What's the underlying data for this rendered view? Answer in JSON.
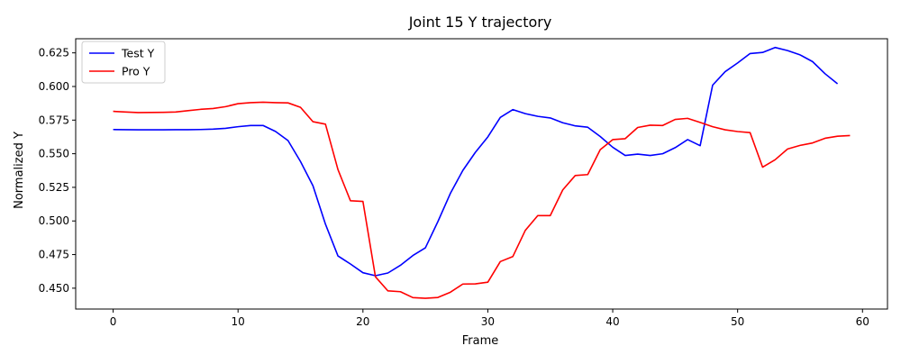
{
  "chart_data": {
    "type": "line",
    "title": "Joint 15 Y trajectory",
    "xlabel": "Frame",
    "ylabel": "Normalized Y",
    "xlim": [
      -3,
      62
    ],
    "ylim": [
      0.4345,
      0.6355
    ],
    "x_ticks": [
      0,
      10,
      20,
      30,
      40,
      50,
      60
    ],
    "y_ticks": [
      0.45,
      0.475,
      0.5,
      0.525,
      0.55,
      0.575,
      0.6,
      0.625
    ],
    "grid": false,
    "legend_position": "upper-left",
    "series": [
      {
        "name": "Test Y",
        "color": "#0000ff",
        "x": [
          0,
          1,
          2,
          3,
          4,
          5,
          6,
          7,
          8,
          9,
          10,
          11,
          12,
          13,
          14,
          15,
          16,
          17,
          18,
          19,
          20,
          21,
          22,
          23,
          24,
          25,
          26,
          27,
          28,
          29,
          30,
          31,
          32,
          33,
          34,
          35,
          36,
          37,
          38,
          39,
          40,
          41,
          42,
          43,
          44,
          45,
          46,
          47,
          48,
          49,
          50,
          51,
          52,
          53,
          54,
          55,
          56,
          57,
          58
        ],
        "y": [
          0.568,
          0.5679,
          0.5678,
          0.5678,
          0.5678,
          0.5679,
          0.5679,
          0.568,
          0.5683,
          0.5689,
          0.5701,
          0.571,
          0.571,
          0.5666,
          0.5598,
          0.5442,
          0.5261,
          0.4976,
          0.474,
          0.468,
          0.4615,
          0.4593,
          0.4613,
          0.467,
          0.4743,
          0.48,
          0.4995,
          0.5205,
          0.5376,
          0.551,
          0.5625,
          0.577,
          0.5828,
          0.5798,
          0.5778,
          0.5766,
          0.573,
          0.5707,
          0.5697,
          0.5628,
          0.5548,
          0.5487,
          0.5497,
          0.5487,
          0.55,
          0.5545,
          0.5605,
          0.556,
          0.601,
          0.611,
          0.6175,
          0.6245,
          0.6253,
          0.629,
          0.6267,
          0.6235,
          0.6185,
          0.6095,
          0.602
        ]
      },
      {
        "name": "Pro Y",
        "color": "#ff0000",
        "x": [
          0,
          1,
          2,
          3,
          4,
          5,
          6,
          7,
          8,
          9,
          10,
          11,
          12,
          13,
          14,
          15,
          16,
          17,
          18,
          19,
          20,
          21,
          22,
          23,
          24,
          25,
          26,
          27,
          28,
          29,
          30,
          31,
          32,
          33,
          34,
          35,
          36,
          37,
          38,
          39,
          40,
          41,
          42,
          43,
          44,
          45,
          46,
          47,
          48,
          49,
          50,
          51,
          52,
          53,
          54,
          55,
          56,
          57,
          58,
          59
        ],
        "y": [
          0.5815,
          0.581,
          0.5806,
          0.5807,
          0.5808,
          0.581,
          0.582,
          0.583,
          0.5836,
          0.585,
          0.5872,
          0.588,
          0.5883,
          0.588,
          0.5878,
          0.5845,
          0.5738,
          0.572,
          0.5382,
          0.515,
          0.5145,
          0.4585,
          0.448,
          0.4474,
          0.443,
          0.4425,
          0.4431,
          0.447,
          0.4531,
          0.4532,
          0.4545,
          0.4698,
          0.4735,
          0.493,
          0.504,
          0.504,
          0.5231,
          0.5338,
          0.5345,
          0.553,
          0.5605,
          0.5612,
          0.5695,
          0.5712,
          0.571,
          0.5755,
          0.5763,
          0.5733,
          0.5701,
          0.5678,
          0.5665,
          0.5657,
          0.54,
          0.5455,
          0.5535,
          0.5562,
          0.558,
          0.5615,
          0.563,
          0.5635
        ]
      }
    ]
  }
}
